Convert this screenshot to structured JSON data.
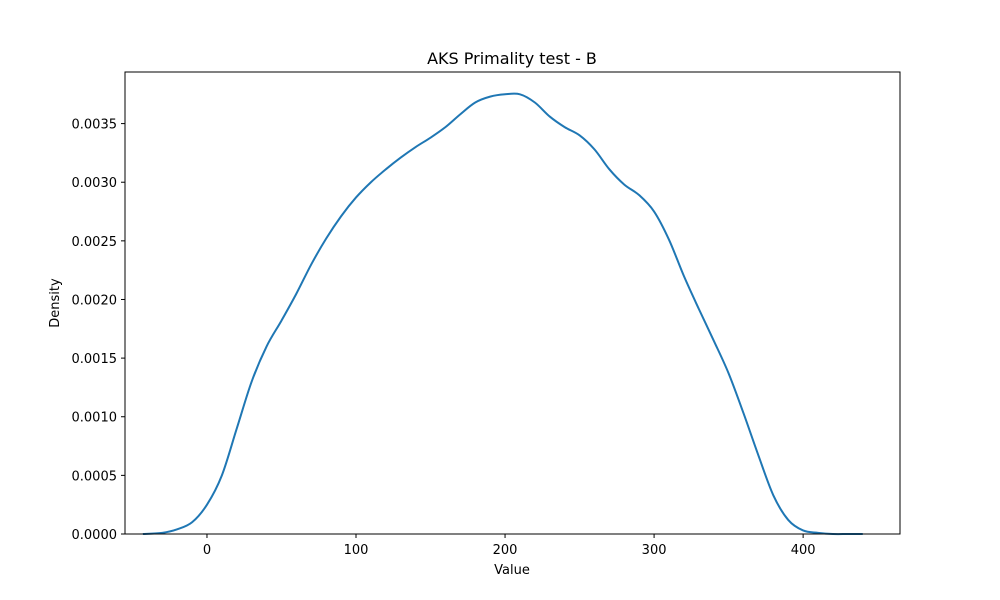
{
  "chart_data": {
    "type": "line",
    "subtype": "kde",
    "title": "AKS Primality test - B",
    "xlabel": "Value",
    "ylabel": "Density",
    "xlim": [
      -55,
      465
    ],
    "ylim": [
      0,
      0.00394
    ],
    "xticks": [
      0,
      100,
      200,
      300,
      400
    ],
    "xtick_labels": [
      "0",
      "100",
      "200",
      "300",
      "400"
    ],
    "yticks": [
      0,
      0.0005,
      0.001,
      0.0015,
      0.002,
      0.0025,
      0.003,
      0.0035
    ],
    "ytick_labels": [
      "0.0000",
      "0.0005",
      "0.0010",
      "0.0015",
      "0.0020",
      "0.0025",
      "0.0030",
      "0.0035"
    ],
    "grid": false,
    "legend": "none",
    "series": [
      {
        "color": "#1f77b4",
        "x": [
          -43,
          -30,
          -20,
          -10,
          0,
          10,
          20,
          30,
          40,
          50,
          60,
          70,
          80,
          90,
          100,
          110,
          120,
          130,
          140,
          150,
          160,
          170,
          180,
          190,
          200,
          210,
          220,
          230,
          240,
          250,
          260,
          270,
          280,
          290,
          300,
          310,
          320,
          330,
          340,
          350,
          360,
          370,
          380,
          390,
          400,
          410,
          420,
          430,
          440
        ],
        "y": [
          0.0,
          1e-05,
          4e-05,
          0.0001,
          0.00025,
          0.0005,
          0.0009,
          0.0013,
          0.0016,
          0.00182,
          0.00205,
          0.0023,
          0.00252,
          0.00271,
          0.00287,
          0.003,
          0.00311,
          0.00321,
          0.0033,
          0.00338,
          0.00347,
          0.00358,
          0.00368,
          0.00373,
          0.00375,
          0.00375,
          0.00368,
          0.00356,
          0.00347,
          0.0034,
          0.00328,
          0.00311,
          0.00298,
          0.00289,
          0.00275,
          0.00251,
          0.0022,
          0.00192,
          0.00165,
          0.00137,
          0.00103,
          0.00067,
          0.00033,
          0.00012,
          3e-05,
          1e-05,
          0.0,
          0.0,
          0.0
        ]
      }
    ]
  }
}
